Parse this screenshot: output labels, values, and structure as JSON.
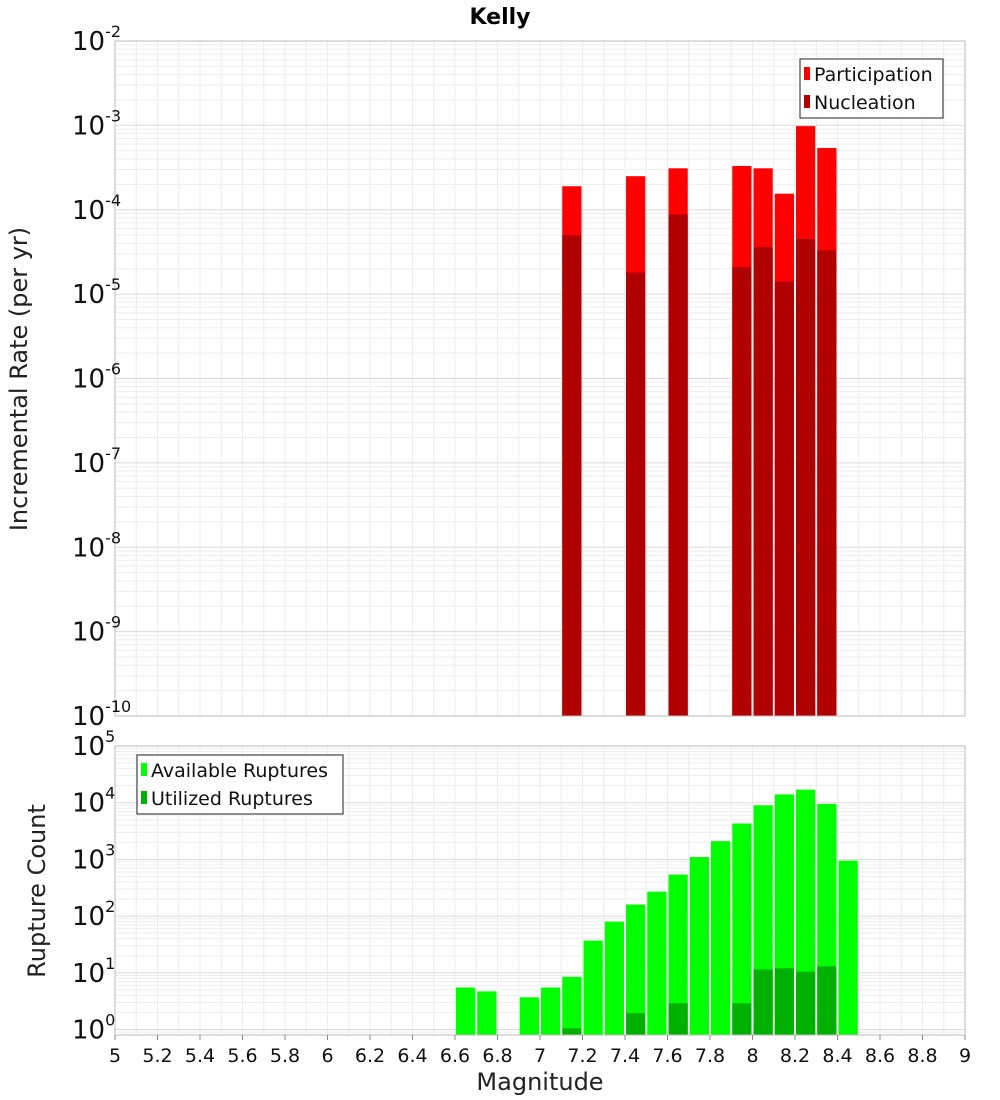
{
  "chart_data": [
    {
      "type": "bar",
      "title": "Kelly",
      "xlabel": "",
      "ylabel": "Incremental Rate (per yr)",
      "yscale": "log",
      "ylim": [
        1e-10,
        0.01
      ],
      "xlim": [
        5,
        9
      ],
      "bin_width": 0.1,
      "grid": true,
      "legend_position": "top-right",
      "y_ticks": [
        {
          "base": "10",
          "exp": "-10",
          "value": 1e-10
        },
        {
          "base": "10",
          "exp": "-9",
          "value": 1e-09
        },
        {
          "base": "10",
          "exp": "-8",
          "value": 1e-08
        },
        {
          "base": "10",
          "exp": "-7",
          "value": 1e-07
        },
        {
          "base": "10",
          "exp": "-6",
          "value": 1e-06
        },
        {
          "base": "10",
          "exp": "-5",
          "value": 1e-05
        },
        {
          "base": "10",
          "exp": "-4",
          "value": 0.0001
        },
        {
          "base": "10",
          "exp": "-3",
          "value": 0.001
        },
        {
          "base": "10",
          "exp": "-2",
          "value": 0.01
        }
      ],
      "series": [
        {
          "name": "Participation",
          "color": "#ff0000",
          "x": [
            7.15,
            7.45,
            7.65,
            7.95,
            8.05,
            8.15,
            8.25,
            8.35
          ],
          "values": [
            0.00019,
            0.00025,
            0.00031,
            0.00033,
            0.00031,
            0.000155,
            0.00098,
            0.00054
          ]
        },
        {
          "name": "Nucleation",
          "color": "#b00000",
          "x": [
            7.15,
            7.45,
            7.65,
            7.95,
            8.05,
            8.15,
            8.25,
            8.35
          ],
          "values": [
            5e-05,
            1.8e-05,
            8.8e-05,
            2.1e-05,
            3.6e-05,
            1.4e-05,
            4.5e-05,
            3.3e-05
          ]
        }
      ]
    },
    {
      "type": "bar",
      "title": "",
      "xlabel": "Magnitude",
      "ylabel": "Rupture Count",
      "yscale": "log",
      "ylim": [
        0.8,
        100000
      ],
      "xlim": [
        5,
        9
      ],
      "bin_width": 0.1,
      "grid": true,
      "legend_position": "top-left",
      "y_ticks": [
        {
          "base": "10",
          "exp": "0",
          "value": 1
        },
        {
          "base": "10",
          "exp": "1",
          "value": 10
        },
        {
          "base": "10",
          "exp": "2",
          "value": 100
        },
        {
          "base": "10",
          "exp": "3",
          "value": 1000
        },
        {
          "base": "10",
          "exp": "4",
          "value": 10000
        },
        {
          "base": "10",
          "exp": "5",
          "value": 100000
        }
      ],
      "x_tick_labels": [
        "5",
        "5.2",
        "5.4",
        "5.6",
        "5.8",
        "6",
        "6.2",
        "6.4",
        "6.6",
        "6.8",
        "7",
        "7.2",
        "7.4",
        "7.6",
        "7.8",
        "8",
        "8.2",
        "8.4",
        "8.6",
        "8.8",
        "9"
      ],
      "x_tick_values": [
        5,
        5.2,
        5.4,
        5.6,
        5.8,
        6,
        6.2,
        6.4,
        6.6,
        6.8,
        7,
        7.2,
        7.4,
        7.6,
        7.8,
        8,
        8.2,
        8.4,
        8.6,
        8.8,
        9
      ],
      "series": [
        {
          "name": "Available Ruptures",
          "color": "#00ff00",
          "x": [
            6.65,
            6.75,
            6.95,
            7.05,
            7.15,
            7.25,
            7.35,
            7.45,
            7.55,
            7.65,
            7.75,
            7.85,
            7.95,
            8.05,
            8.15,
            8.25,
            8.35,
            8.45
          ],
          "values": [
            5.5,
            4.7,
            3.7,
            5.5,
            8.5,
            37,
            80,
            160,
            270,
            540,
            1100,
            2100,
            4300,
            9000,
            14000,
            17000,
            9500,
            950
          ]
        },
        {
          "name": "Utilized Ruptures",
          "color": "#00b000",
          "x": [
            7.15,
            7.45,
            7.65,
            7.95,
            8.05,
            8.15,
            8.25,
            8.35
          ],
          "values": [
            1.05,
            1.95,
            2.9,
            2.9,
            11.5,
            12,
            10.5,
            13
          ]
        }
      ]
    }
  ]
}
